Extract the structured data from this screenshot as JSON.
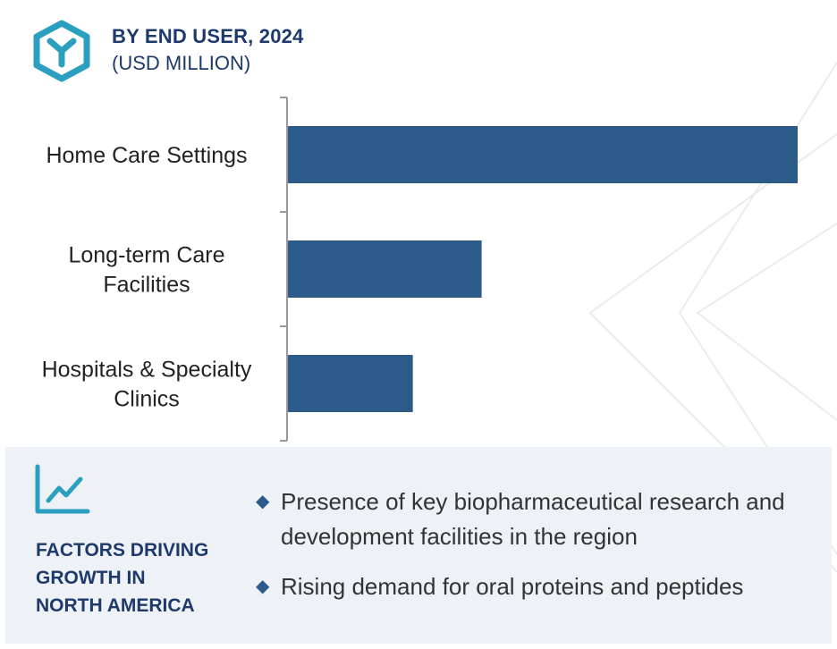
{
  "header": {
    "title": "BY END USER, 2024",
    "subtitle": "(USD MILLION)",
    "logo_icon": "hexagon-y-logo-icon",
    "accent_color": "#2a9fbf",
    "text_color": "#1d3a6b"
  },
  "chart_data": {
    "type": "bar",
    "orientation": "horizontal",
    "categories": [
      [
        "Home Care Settings"
      ],
      [
        "Long-term Care",
        "Facilities"
      ],
      [
        "Hospitals & Specialty",
        "Clinics"
      ]
    ],
    "values": [
      100,
      38,
      24.5
    ],
    "xlim": [
      0,
      100
    ],
    "bar_color": "#2d5b89",
    "grid": false,
    "legend": "none"
  },
  "factors": {
    "icon": "line-chart-icon",
    "heading": [
      "FACTORS DRIVING",
      "GROWTH IN",
      "NORTH AMERICA"
    ],
    "bullet_icon": "diamond-bullet-icon",
    "bullets": [
      "Presence of key biopharmaceutical research and development facilities in the region",
      "Rising demand for oral proteins and peptides"
    ]
  }
}
